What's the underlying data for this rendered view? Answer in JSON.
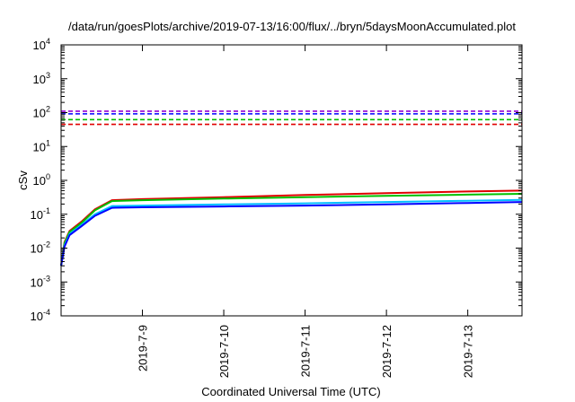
{
  "chart_data": {
    "type": "line",
    "title": "/data/run/goesPlots/archive/2019-07-13/16:00/flux/../bryn/5daysMoonAccumulated.plot",
    "xlabel": "Coordinated Universal Time (UTC)",
    "ylabel": "cSv",
    "yscale": "log",
    "ylim": [
      0.0001,
      10000
    ],
    "xlim": [
      "2019-07-08 00:00",
      "2019-07-13 16:00"
    ],
    "y_ticks": [
      {
        "base": "10",
        "exp": "-4",
        "value": 0.0001
      },
      {
        "base": "10",
        "exp": "-3",
        "value": 0.001
      },
      {
        "base": "10",
        "exp": "-2",
        "value": 0.01
      },
      {
        "base": "10",
        "exp": "-1",
        "value": 0.1
      },
      {
        "base": "10",
        "exp": "0",
        "value": 1
      },
      {
        "base": "10",
        "exp": "1",
        "value": 10
      },
      {
        "base": "10",
        "exp": "2",
        "value": 100
      },
      {
        "base": "10",
        "exp": "3",
        "value": 1000
      },
      {
        "base": "10",
        "exp": "4",
        "value": 10000
      }
    ],
    "x_ticks": [
      {
        "label": "2019-7-9",
        "value": "2019-07-09 00:00"
      },
      {
        "label": "2019-7-10",
        "value": "2019-07-10 00:00"
      },
      {
        "label": "2019-7-11",
        "value": "2019-07-11 00:00"
      },
      {
        "label": "2019-7-12",
        "value": "2019-07-12 00:00"
      },
      {
        "label": "2019-7-13",
        "value": "2019-07-13 00:00"
      }
    ],
    "grid": false,
    "legend": "none",
    "thresholds": [
      {
        "color": "#9400d3",
        "value": 110
      },
      {
        "color": "#0000ff",
        "value": 92
      },
      {
        "color": "#00c000",
        "value": 62
      },
      {
        "color": "#e00000",
        "value": 45
      }
    ],
    "series": [
      {
        "color": "#e00000",
        "x": [
          "2019-07-08 00:00",
          "2019-07-08 01:00",
          "2019-07-08 02:30",
          "2019-07-08 06:00",
          "2019-07-08 10:00",
          "2019-07-08 15:00",
          "2019-07-09 00:00",
          "2019-07-10 00:00",
          "2019-07-11 00:00",
          "2019-07-12 00:00",
          "2019-07-13 00:00",
          "2019-07-13 16:00"
        ],
        "y": [
          0.003,
          0.015,
          0.032,
          0.06,
          0.14,
          0.26,
          0.28,
          0.32,
          0.37,
          0.42,
          0.47,
          0.5
        ]
      },
      {
        "color": "#00c000",
        "x": [
          "2019-07-08 00:00",
          "2019-07-08 01:00",
          "2019-07-08 02:30",
          "2019-07-08 06:00",
          "2019-07-08 10:00",
          "2019-07-08 15:00",
          "2019-07-09 00:00",
          "2019-07-10 00:00",
          "2019-07-11 00:00",
          "2019-07-12 00:00",
          "2019-07-13 00:00",
          "2019-07-13 16:00"
        ],
        "y": [
          0.003,
          0.014,
          0.03,
          0.055,
          0.13,
          0.245,
          0.26,
          0.29,
          0.32,
          0.35,
          0.38,
          0.4
        ]
      },
      {
        "color": "#00bfff",
        "x": [
          "2019-07-08 00:00",
          "2019-07-08 01:00",
          "2019-07-08 02:30",
          "2019-07-08 06:00",
          "2019-07-08 10:00",
          "2019-07-08 15:00",
          "2019-07-09 00:00",
          "2019-07-10 00:00",
          "2019-07-11 00:00",
          "2019-07-12 00:00",
          "2019-07-13 00:00",
          "2019-07-13 16:00"
        ],
        "y": [
          0.003,
          0.012,
          0.026,
          0.048,
          0.1,
          0.175,
          0.18,
          0.195,
          0.21,
          0.23,
          0.25,
          0.265
        ]
      },
      {
        "color": "#0000ff",
        "x": [
          "2019-07-08 00:00",
          "2019-07-08 01:00",
          "2019-07-08 02:30",
          "2019-07-08 06:00",
          "2019-07-08 10:00",
          "2019-07-08 15:00",
          "2019-07-09 00:00",
          "2019-07-10 00:00",
          "2019-07-11 00:00",
          "2019-07-12 00:00",
          "2019-07-13 00:00",
          "2019-07-13 16:00"
        ],
        "y": [
          0.003,
          0.011,
          0.024,
          0.044,
          0.09,
          0.155,
          0.16,
          0.17,
          0.18,
          0.195,
          0.215,
          0.23
        ]
      }
    ]
  }
}
